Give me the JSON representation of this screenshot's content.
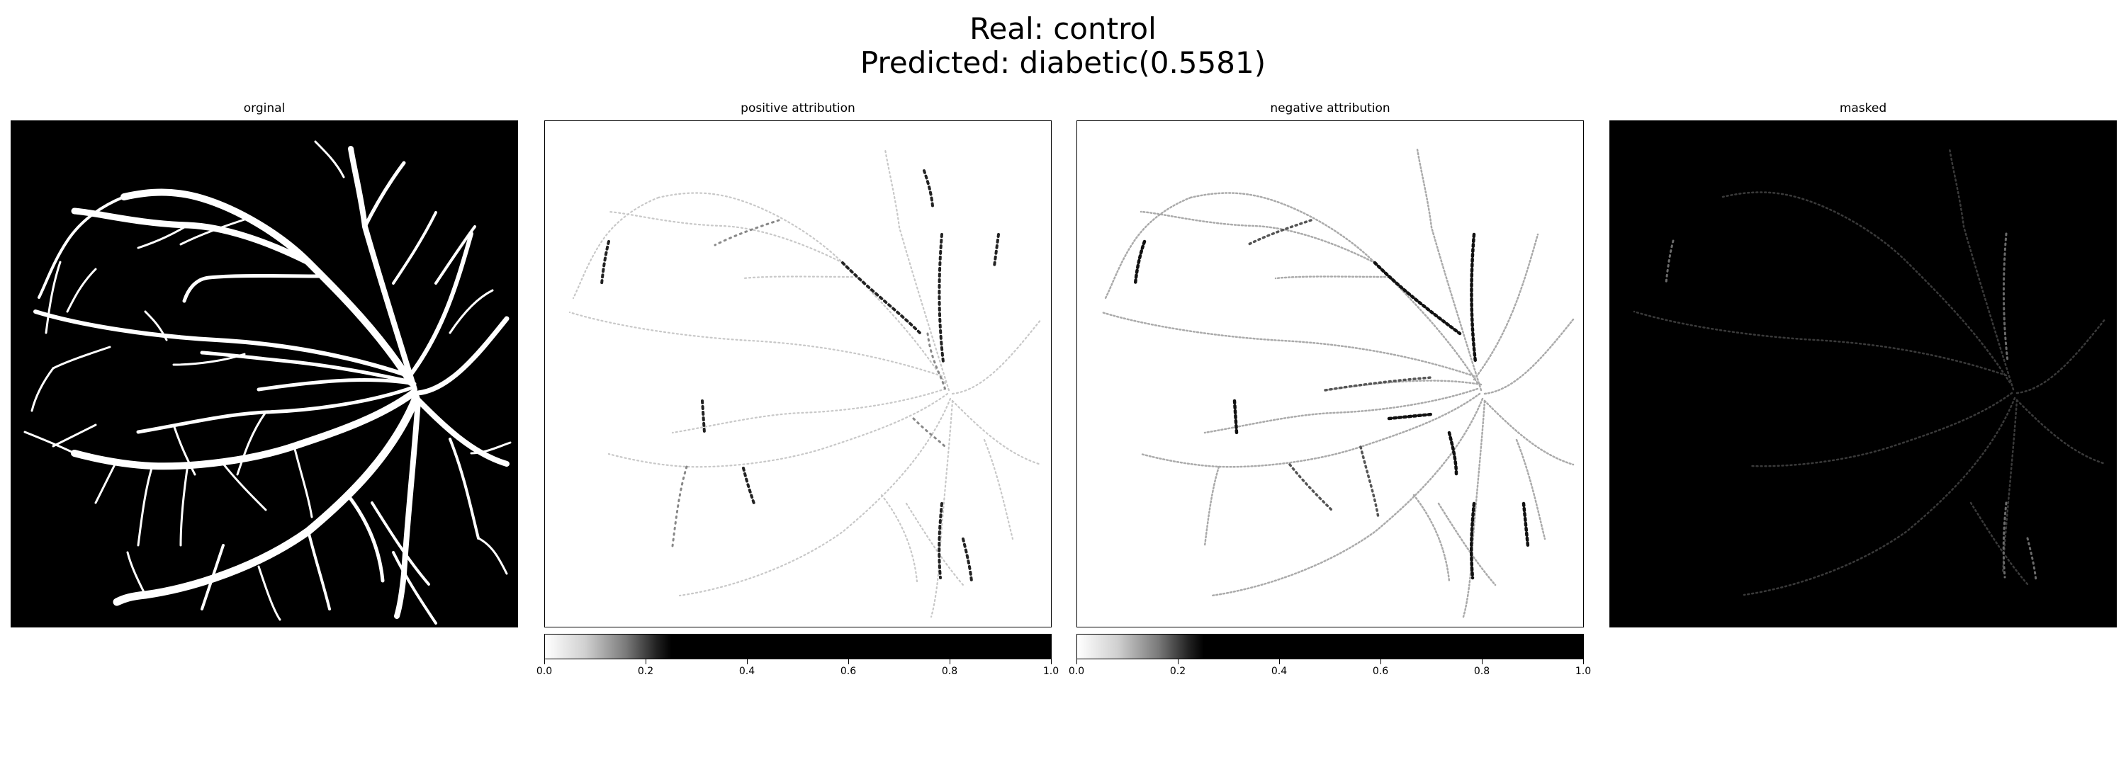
{
  "figure": {
    "title_line1": "Real: control",
    "title_line2": "Predicted: diabetic(0.5581)"
  },
  "panels": [
    {
      "title": "orginal"
    },
    {
      "title": "positive attribution"
    },
    {
      "title": "negative attribution"
    },
    {
      "title": "masked"
    }
  ],
  "colorbars": [
    {
      "ticks": [
        "0.0",
        "0.2",
        "0.4",
        "0.6",
        "0.8",
        "1.0"
      ]
    },
    {
      "ticks": [
        "0.0",
        "0.2",
        "0.4",
        "0.6",
        "0.8",
        "1.0"
      ]
    }
  ],
  "colors": {
    "background": "#ffffff",
    "vessel": "#ffffff",
    "image_background": "#000000",
    "attribution_low": "#ffffff",
    "attribution_high": "#000000"
  }
}
